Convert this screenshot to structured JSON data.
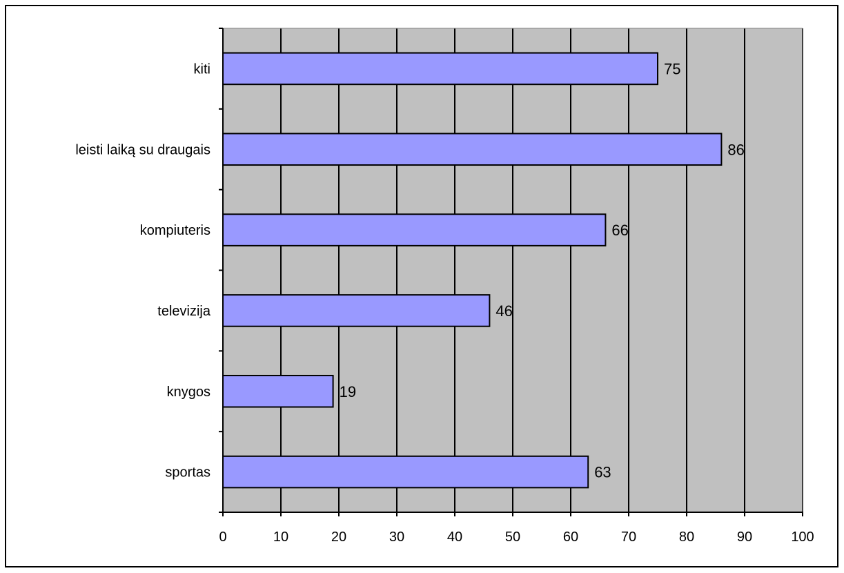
{
  "chart_data": {
    "type": "bar",
    "orientation": "horizontal",
    "categories": [
      "sportas",
      "knygos",
      "televizija",
      "kompiuteris",
      "leisti laiką su draugais",
      "kiti"
    ],
    "values": [
      63,
      19,
      46,
      66,
      86,
      75
    ],
    "xlim": [
      0,
      100
    ],
    "xticks": [
      "0",
      "10",
      "20",
      "30",
      "40",
      "50",
      "60",
      "70",
      "80",
      "90",
      "100"
    ],
    "grid": true,
    "legend": "none",
    "colors": {
      "bar_fill": "#9999ff",
      "plot_background": "#c0c0c0",
      "grid": "#000000"
    }
  }
}
